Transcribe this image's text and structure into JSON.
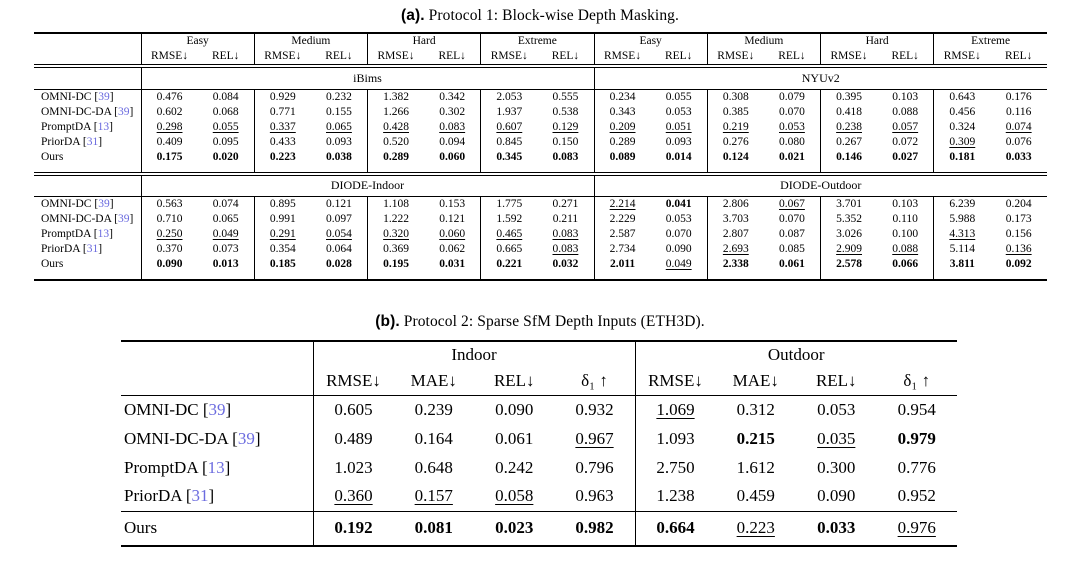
{
  "colors": {
    "citation": "#6b6bdf"
  },
  "table_a": {
    "title_label": "(a).",
    "title": "Protocol 1: Block-wise Depth Masking.",
    "difficulties": [
      "Easy",
      "Medium",
      "Hard",
      "Extreme"
    ],
    "metrics": [
      "RMSE↓",
      "REL↓"
    ],
    "blocks": [
      {
        "datasets": [
          "iBims",
          "NYUv2"
        ],
        "rows": [
          {
            "method": "OMNI-DC",
            "cite": "39",
            "values": [
              "0.476",
              "0.084",
              "0.929",
              "0.232",
              "1.382",
              "0.342",
              "2.053",
              "0.555",
              "0.234",
              "0.055",
              "0.308",
              "0.079",
              "0.395",
              "0.103",
              "0.643",
              "0.176"
            ],
            "styles": [
              "p",
              "p",
              "p",
              "p",
              "p",
              "p",
              "p",
              "p",
              "p",
              "p",
              "p",
              "p",
              "p",
              "p",
              "p",
              "p"
            ]
          },
          {
            "method": "OMNI-DC-DA",
            "cite": "39",
            "values": [
              "0.602",
              "0.068",
              "0.771",
              "0.155",
              "1.266",
              "0.302",
              "1.937",
              "0.538",
              "0.343",
              "0.053",
              "0.385",
              "0.070",
              "0.418",
              "0.088",
              "0.456",
              "0.116"
            ],
            "styles": [
              "p",
              "p",
              "p",
              "p",
              "p",
              "p",
              "p",
              "p",
              "p",
              "p",
              "p",
              "p",
              "p",
              "p",
              "p",
              "p"
            ]
          },
          {
            "method": "PromptDA",
            "cite": "13",
            "values": [
              "0.298",
              "0.055",
              "0.337",
              "0.065",
              "0.428",
              "0.083",
              "0.607",
              "0.129",
              "0.209",
              "0.051",
              "0.219",
              "0.053",
              "0.238",
              "0.057",
              "0.324",
              "0.074"
            ],
            "styles": [
              "u",
              "u",
              "u",
              "u",
              "u",
              "u",
              "u",
              "u",
              "u",
              "u",
              "u",
              "u",
              "u",
              "u",
              "p",
              "u"
            ]
          },
          {
            "method": "PriorDA",
            "cite": "31",
            "values": [
              "0.409",
              "0.095",
              "0.433",
              "0.093",
              "0.520",
              "0.094",
              "0.845",
              "0.150",
              "0.289",
              "0.093",
              "0.276",
              "0.080",
              "0.267",
              "0.072",
              "0.309",
              "0.076"
            ],
            "styles": [
              "p",
              "p",
              "p",
              "p",
              "p",
              "p",
              "p",
              "p",
              "p",
              "p",
              "p",
              "p",
              "p",
              "p",
              "u",
              "p"
            ]
          },
          {
            "method": "Ours",
            "cite": "",
            "values": [
              "0.175",
              "0.020",
              "0.223",
              "0.038",
              "0.289",
              "0.060",
              "0.345",
              "0.083",
              "0.089",
              "0.014",
              "0.124",
              "0.021",
              "0.146",
              "0.027",
              "0.181",
              "0.033"
            ],
            "styles": [
              "b",
              "b",
              "b",
              "b",
              "b",
              "b",
              "b",
              "b",
              "b",
              "b",
              "b",
              "b",
              "b",
              "b",
              "b",
              "b"
            ]
          }
        ]
      },
      {
        "datasets": [
          "DIODE-Indoor",
          "DIODE-Outdoor"
        ],
        "rows": [
          {
            "method": "OMNI-DC",
            "cite": "39",
            "values": [
              "0.563",
              "0.074",
              "0.895",
              "0.121",
              "1.108",
              "0.153",
              "1.775",
              "0.271",
              "2.214",
              "0.041",
              "2.806",
              "0.067",
              "3.701",
              "0.103",
              "6.239",
              "0.204"
            ],
            "styles": [
              "p",
              "p",
              "p",
              "p",
              "p",
              "p",
              "p",
              "p",
              "u",
              "b",
              "p",
              "u",
              "p",
              "p",
              "p",
              "p"
            ]
          },
          {
            "method": "OMNI-DC-DA",
            "cite": "39",
            "values": [
              "0.710",
              "0.065",
              "0.991",
              "0.097",
              "1.222",
              "0.121",
              "1.592",
              "0.211",
              "2.229",
              "0.053",
              "3.703",
              "0.070",
              "5.352",
              "0.110",
              "5.988",
              "0.173"
            ],
            "styles": [
              "p",
              "p",
              "p",
              "p",
              "p",
              "p",
              "p",
              "p",
              "p",
              "p",
              "p",
              "p",
              "p",
              "p",
              "p",
              "p"
            ]
          },
          {
            "method": "PromptDA",
            "cite": "13",
            "values": [
              "0.250",
              "0.049",
              "0.291",
              "0.054",
              "0.320",
              "0.060",
              "0.465",
              "0.083",
              "2.587",
              "0.070",
              "2.807",
              "0.087",
              "3.026",
              "0.100",
              "4.313",
              "0.156"
            ],
            "styles": [
              "u",
              "u",
              "u",
              "u",
              "u",
              "u",
              "u",
              "u",
              "p",
              "p",
              "p",
              "p",
              "p",
              "p",
              "u",
              "p"
            ]
          },
          {
            "method": "PriorDA",
            "cite": "31",
            "values": [
              "0.370",
              "0.073",
              "0.354",
              "0.064",
              "0.369",
              "0.062",
              "0.665",
              "0.083",
              "2.734",
              "0.090",
              "2.693",
              "0.085",
              "2.909",
              "0.088",
              "5.114",
              "0.136"
            ],
            "styles": [
              "p",
              "p",
              "p",
              "p",
              "p",
              "p",
              "p",
              "u",
              "p",
              "p",
              "u",
              "p",
              "u",
              "u",
              "p",
              "u"
            ]
          },
          {
            "method": "Ours",
            "cite": "",
            "values": [
              "0.090",
              "0.013",
              "0.185",
              "0.028",
              "0.195",
              "0.031",
              "0.221",
              "0.032",
              "2.011",
              "0.049",
              "2.338",
              "0.061",
              "2.578",
              "0.066",
              "3.811",
              "0.092"
            ],
            "styles": [
              "b",
              "b",
              "b",
              "b",
              "b",
              "b",
              "b",
              "b",
              "b",
              "u",
              "b",
              "b",
              "b",
              "b",
              "b",
              "b"
            ]
          }
        ]
      }
    ]
  },
  "table_b": {
    "title_label": "(b).",
    "title": "Protocol 2: Sparse SfM Depth Inputs (ETH3D).",
    "datasets": [
      "Indoor",
      "Outdoor"
    ],
    "metrics": [
      "RMSE↓",
      "MAE↓",
      "REL↓",
      "δ₁ ↑"
    ],
    "rows": [
      {
        "method": "OMNI-DC",
        "cite": "39",
        "values": [
          "0.605",
          "0.239",
          "0.090",
          "0.932",
          "1.069",
          "0.312",
          "0.053",
          "0.954"
        ],
        "styles": [
          "p",
          "p",
          "p",
          "p",
          "u",
          "p",
          "p",
          "p"
        ]
      },
      {
        "method": "OMNI-DC-DA",
        "cite": "39",
        "values": [
          "0.489",
          "0.164",
          "0.061",
          "0.967",
          "1.093",
          "0.215",
          "0.035",
          "0.979"
        ],
        "styles": [
          "p",
          "p",
          "p",
          "u",
          "p",
          "b",
          "u",
          "b"
        ]
      },
      {
        "method": "PromptDA",
        "cite": "13",
        "values": [
          "1.023",
          "0.648",
          "0.242",
          "0.796",
          "2.750",
          "1.612",
          "0.300",
          "0.776"
        ],
        "styles": [
          "p",
          "p",
          "p",
          "p",
          "p",
          "p",
          "p",
          "p"
        ]
      },
      {
        "method": "PriorDA",
        "cite": "31",
        "values": [
          "0.360",
          "0.157",
          "0.058",
          "0.963",
          "1.238",
          "0.459",
          "0.090",
          "0.952"
        ],
        "styles": [
          "u",
          "u",
          "u",
          "p",
          "p",
          "p",
          "p",
          "p"
        ]
      }
    ],
    "ours_row": {
      "method": "Ours",
      "cite": "",
      "values": [
        "0.192",
        "0.081",
        "0.023",
        "0.982",
        "0.664",
        "0.223",
        "0.033",
        "0.976"
      ],
      "styles": [
        "b",
        "b",
        "b",
        "b",
        "b",
        "u",
        "b",
        "u"
      ]
    }
  }
}
